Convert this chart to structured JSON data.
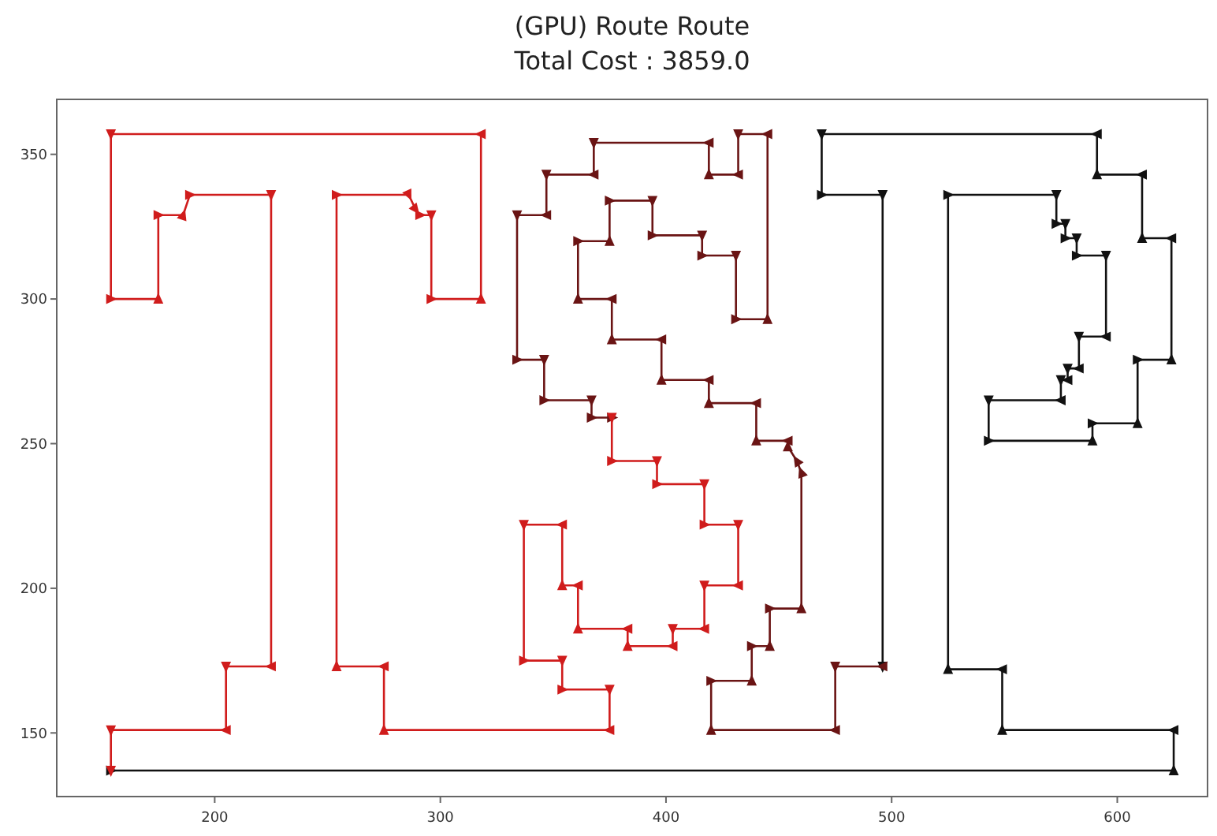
{
  "chart_data": {
    "type": "line",
    "title": "(GPU) Route Route",
    "subtitle": "Total Cost : 3859.0",
    "xlim": [
      130,
      640
    ],
    "ylim": [
      128,
      369
    ],
    "xticks": [
      200,
      300,
      400,
      500,
      600
    ],
    "yticks": [
      150,
      200,
      250,
      300,
      350
    ],
    "marker": "triangle",
    "series": [
      {
        "color": "#111111",
        "x": [
          154,
          625,
          625,
          549,
          549,
          525,
          525,
          573,
          573,
          577,
          577,
          582,
          582,
          595,
          595,
          583,
          583,
          578,
          578,
          575,
          575,
          543,
          543,
          589,
          589,
          609,
          609,
          624,
          624,
          611,
          611,
          591,
          591,
          469,
          469,
          496,
          496
        ],
        "values": [
          137,
          137,
          151,
          151,
          172,
          172,
          336,
          336,
          326,
          326,
          321,
          321,
          315,
          315,
          287,
          287,
          276,
          276,
          272,
          272,
          265,
          265,
          251,
          251,
          257,
          257,
          279,
          279,
          321,
          321,
          343,
          343,
          357,
          357,
          336,
          336,
          173
        ]
      },
      {
        "color": "#6a1414",
        "x": [
          496,
          475,
          475,
          420,
          420,
          438,
          438,
          446,
          446,
          460,
          460,
          458,
          454,
          454,
          440,
          440,
          419,
          419,
          398,
          398,
          376,
          376,
          361,
          361,
          375,
          375,
          394,
          394,
          416,
          416,
          431,
          431,
          445,
          445,
          432,
          432,
          419,
          419,
          368,
          368,
          347,
          347,
          334,
          334,
          346,
          346,
          367,
          367,
          376
        ],
        "values": [
          173,
          173,
          151,
          151,
          168,
          168,
          180,
          180,
          193,
          193,
          240,
          244,
          249,
          251,
          251,
          264,
          264,
          272,
          272,
          286,
          286,
          300,
          300,
          320,
          320,
          334,
          334,
          322,
          322,
          315,
          315,
          293,
          293,
          357,
          357,
          343,
          343,
          354,
          354,
          343,
          343,
          329,
          329,
          279,
          279,
          265,
          265,
          259,
          259
        ]
      },
      {
        "color": "#d01c1c",
        "x": [
          376,
          376,
          396,
          396,
          417,
          417,
          432,
          432,
          417,
          417,
          403,
          403,
          383,
          383,
          361,
          361,
          354,
          354,
          337,
          337,
          354,
          354,
          375,
          375,
          275,
          275,
          254,
          254,
          286,
          289,
          291,
          296,
          296,
          318,
          318,
          154,
          154,
          175,
          175,
          186,
          189,
          225,
          225,
          205,
          205,
          154,
          154
        ],
        "values": [
          259,
          244,
          244,
          236,
          236,
          222,
          222,
          201,
          201,
          186,
          186,
          180,
          180,
          186,
          186,
          201,
          201,
          222,
          222,
          175,
          175,
          165,
          165,
          151,
          151,
          173,
          173,
          336,
          336,
          331,
          329,
          329,
          300,
          300,
          357,
          357,
          300,
          300,
          329,
          329,
          336,
          336,
          173,
          173,
          151,
          151,
          137
        ]
      }
    ]
  }
}
